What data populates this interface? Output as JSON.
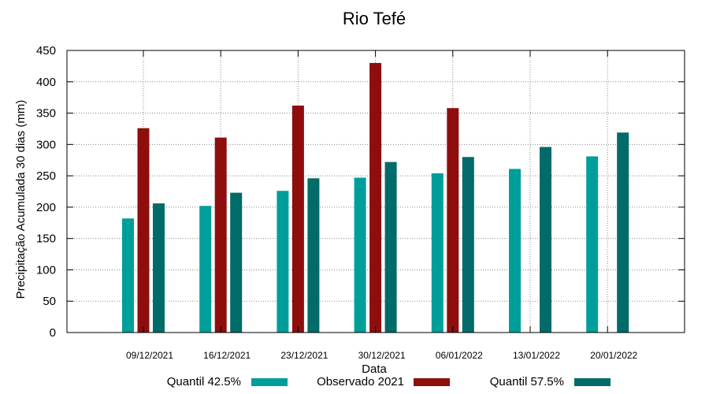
{
  "chart_data": {
    "type": "bar",
    "title": "Rio Tefé",
    "xlabel": "Data",
    "ylabel": "Precipitação Acumulada 30 dias (mm)",
    "ylim": [
      0,
      450
    ],
    "yticks": [
      0,
      50,
      100,
      150,
      200,
      250,
      300,
      350,
      400,
      450
    ],
    "grid": true,
    "legend_position": "bottom",
    "categories": [
      "09/12/2021",
      "16/12/2021",
      "23/12/2021",
      "30/12/2021",
      "06/01/2022",
      "13/01/2022",
      "20/01/2022"
    ],
    "series": [
      {
        "name": "Quantil 42.5%",
        "color": "#009e9a",
        "values": [
          182,
          202,
          226,
          247,
          254,
          261,
          281
        ]
      },
      {
        "name": "Observado 2021",
        "color": "#8e0e0e",
        "values": [
          326,
          311,
          362,
          430,
          358,
          null,
          null
        ]
      },
      {
        "name": "Quantil 57.5%",
        "color": "#006b68",
        "values": [
          206,
          223,
          246,
          272,
          280,
          296,
          319
        ]
      }
    ]
  }
}
